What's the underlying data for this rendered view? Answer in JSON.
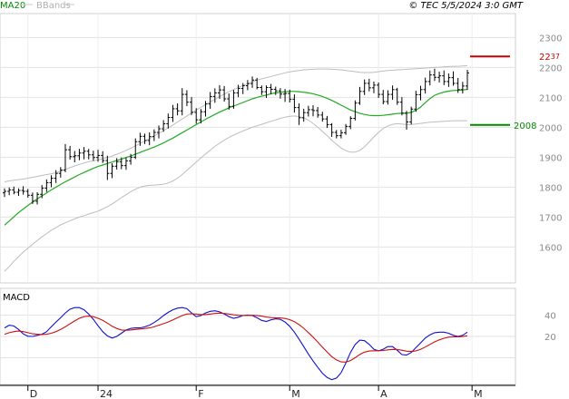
{
  "header": {
    "ma_label": "MA20",
    "bb_label": "BBands",
    "copyright": "© TEC 5/5/2024 3:0 GMT"
  },
  "chart_data": [
    {
      "type": "candlestick",
      "name": "price",
      "ylim": [
        1480,
        2380
      ],
      "yticks": [
        1600,
        1700,
        1800,
        1900,
        2000,
        2100,
        2200,
        2300
      ],
      "grid": true,
      "x_labels": [
        {
          "label": "D",
          "index": 5
        },
        {
          "label": "24",
          "index": 20
        },
        {
          "label": "F",
          "index": 41
        },
        {
          "label": "M",
          "index": 61
        },
        {
          "label": "A",
          "index": 80
        },
        {
          "label": "M",
          "index": 100
        }
      ],
      "levels": [
        {
          "value": 2237,
          "text_main": "22",
          "text_small": "37",
          "color": "#cc0000"
        },
        {
          "value": 2008,
          "text_main": "2008",
          "text_small": "",
          "color": "#008800"
        }
      ],
      "ohlc": [
        [
          1781,
          1796,
          1767,
          1786
        ],
        [
          1786,
          1799,
          1773,
          1791
        ],
        [
          1791,
          1802,
          1776,
          1783
        ],
        [
          1783,
          1796,
          1771,
          1789
        ],
        [
          1789,
          1803,
          1775,
          1786
        ],
        [
          1786,
          1794,
          1765,
          1773
        ],
        [
          1773,
          1782,
          1744,
          1753
        ],
        [
          1753,
          1783,
          1742,
          1776
        ],
        [
          1776,
          1807,
          1763,
          1797
        ],
        [
          1797,
          1826,
          1784,
          1815
        ],
        [
          1815,
          1840,
          1800,
          1830
        ],
        [
          1830,
          1857,
          1814,
          1846
        ],
        [
          1846,
          1867,
          1832,
          1857
        ],
        [
          1857,
          1944,
          1850,
          1925
        ],
        [
          1925,
          1938,
          1892,
          1902
        ],
        [
          1902,
          1921,
          1883,
          1905
        ],
        [
          1905,
          1928,
          1890,
          1914
        ],
        [
          1914,
          1934,
          1893,
          1920
        ],
        [
          1920,
          1928,
          1893,
          1908
        ],
        [
          1908,
          1922,
          1888,
          1899
        ],
        [
          1899,
          1925,
          1885,
          1906
        ],
        [
          1906,
          1920,
          1881,
          1889
        ],
        [
          1889,
          1905,
          1824,
          1846
        ],
        [
          1846,
          1880,
          1830,
          1870
        ],
        [
          1870,
          1897,
          1859,
          1885
        ],
        [
          1885,
          1899,
          1860,
          1872
        ],
        [
          1872,
          1899,
          1858,
          1888
        ],
        [
          1888,
          1911,
          1875,
          1900
        ],
        [
          1900,
          1963,
          1894,
          1952
        ],
        [
          1952,
          1982,
          1938,
          1970
        ],
        [
          1970,
          1979,
          1944,
          1956
        ],
        [
          1956,
          1983,
          1940,
          1969
        ],
        [
          1969,
          1993,
          1954,
          1983
        ],
        [
          1983,
          2006,
          1963,
          1995
        ],
        [
          1995,
          2024,
          1985,
          2012
        ],
        [
          2012,
          2046,
          1996,
          2033
        ],
        [
          2033,
          2075,
          2018,
          2062
        ],
        [
          2062,
          2080,
          2040,
          2055
        ],
        [
          2055,
          2131,
          2040,
          2110
        ],
        [
          2110,
          2124,
          2071,
          2084
        ],
        [
          2084,
          2101,
          2041,
          2050
        ],
        [
          2050,
          2064,
          2012,
          2025
        ],
        [
          2025,
          2061,
          2013,
          2052
        ],
        [
          2052,
          2088,
          2036,
          2078
        ],
        [
          2078,
          2118,
          2062,
          2103
        ],
        [
          2103,
          2130,
          2082,
          2115
        ],
        [
          2115,
          2141,
          2095,
          2125
        ],
        [
          2125,
          2138,
          2086,
          2095
        ],
        [
          2095,
          2113,
          2059,
          2070
        ],
        [
          2070,
          2125,
          2062,
          2115
        ],
        [
          2115,
          2142,
          2101,
          2130
        ],
        [
          2130,
          2148,
          2111,
          2139
        ],
        [
          2139,
          2158,
          2124,
          2146
        ],
        [
          2146,
          2170,
          2132,
          2158
        ],
        [
          2158,
          2165,
          2127,
          2133
        ],
        [
          2133,
          2140,
          2108,
          2119
        ],
        [
          2119,
          2140,
          2098,
          2133
        ],
        [
          2133,
          2145,
          2110,
          2127
        ],
        [
          2127,
          2136,
          2108,
          2122
        ],
        [
          2122,
          2131,
          2096,
          2111
        ],
        [
          2111,
          2128,
          2085,
          2113
        ],
        [
          2113,
          2126,
          2083,
          2094
        ],
        [
          2094,
          2110,
          2049,
          2066
        ],
        [
          2066,
          2080,
          2008,
          2032
        ],
        [
          2032,
          2062,
          2019,
          2049
        ],
        [
          2049,
          2072,
          2036,
          2059
        ],
        [
          2059,
          2074,
          2037,
          2056
        ],
        [
          2056,
          2068,
          2032,
          2041
        ],
        [
          2041,
          2052,
          2019,
          2028
        ],
        [
          2028,
          2038,
          1998,
          2009
        ],
        [
          2009,
          2014,
          1968,
          1983
        ],
        [
          1983,
          1991,
          1963,
          1972
        ],
        [
          1972,
          1992,
          1963,
          1982
        ],
        [
          1982,
          2011,
          1975,
          2003
        ],
        [
          2003,
          2037,
          1994,
          2030
        ],
        [
          2030,
          2090,
          2023,
          2081
        ],
        [
          2081,
          2135,
          2075,
          2120
        ],
        [
          2120,
          2160,
          2108,
          2147
        ],
        [
          2147,
          2162,
          2120,
          2132
        ],
        [
          2132,
          2153,
          2114,
          2141
        ],
        [
          2141,
          2150,
          2098,
          2110
        ],
        [
          2110,
          2125,
          2077,
          2086
        ],
        [
          2086,
          2124,
          2076,
          2110
        ],
        [
          2110,
          2140,
          2092,
          2126
        ],
        [
          2126,
          2132,
          2075,
          2084
        ],
        [
          2084,
          2101,
          2040,
          2047
        ],
        [
          2047,
          2055,
          1992,
          2018
        ],
        [
          2018,
          2069,
          2010,
          2061
        ],
        [
          2061,
          2122,
          2052,
          2109
        ],
        [
          2109,
          2139,
          2090,
          2126
        ],
        [
          2126,
          2166,
          2113,
          2153
        ],
        [
          2153,
          2190,
          2140,
          2175
        ],
        [
          2175,
          2196,
          2155,
          2167
        ],
        [
          2167,
          2186,
          2150,
          2172
        ],
        [
          2172,
          2190,
          2141,
          2153
        ],
        [
          2153,
          2180,
          2135,
          2166
        ],
        [
          2166,
          2187,
          2139,
          2147
        ],
        [
          2147,
          2165,
          2115,
          2126
        ],
        [
          2126,
          2152,
          2113,
          2138
        ],
        [
          2138,
          2192,
          2125,
          2182
        ]
      ],
      "ma20": [
        1673,
        1687,
        1701,
        1715,
        1727,
        1739,
        1750,
        1761,
        1771,
        1781,
        1791,
        1800,
        1809,
        1818,
        1826,
        1834,
        1842,
        1849,
        1856,
        1863,
        1869,
        1874,
        1879,
        1884,
        1889,
        1894,
        1899,
        1904,
        1910,
        1916,
        1922,
        1928,
        1934,
        1941,
        1948,
        1956,
        1964,
        1973,
        1982,
        1991,
        2000,
        2009,
        2018,
        2027,
        2035,
        2043,
        2051,
        2058,
        2065,
        2071,
        2077,
        2083,
        2089,
        2095,
        2100,
        2104,
        2108,
        2112,
        2115,
        2117,
        2119,
        2120,
        2120,
        2119,
        2117,
        2115,
        2112,
        2108,
        2103,
        2097,
        2090,
        2082,
        2074,
        2066,
        2058,
        2052,
        2047,
        2043,
        2040,
        2039,
        2039,
        2040,
        2042,
        2044,
        2046,
        2047,
        2047,
        2050,
        2057,
        2068,
        2082,
        2096,
        2107,
        2113,
        2118,
        2121,
        2123,
        2124,
        2125,
        2127
      ],
      "bb_upper": [
        1818,
        1821,
        1823,
        1825,
        1827,
        1830,
        1833,
        1836,
        1839,
        1842,
        1845,
        1848,
        1853,
        1859,
        1865,
        1871,
        1876,
        1881,
        1885,
        1888,
        1891,
        1895,
        1899,
        1904,
        1910,
        1916,
        1923,
        1930,
        1938,
        1946,
        1954,
        1962,
        1971,
        1980,
        1989,
        1998,
        2008,
        2018,
        2028,
        2038,
        2048,
        2058,
        2067,
        2076,
        2085,
        2094,
        2103,
        2111,
        2119,
        2126,
        2133,
        2140,
        2146,
        2152,
        2158,
        2162,
        2166,
        2170,
        2174,
        2178,
        2182,
        2185,
        2188,
        2190,
        2192,
        2193,
        2194,
        2195,
        2195,
        2195,
        2194,
        2193,
        2192,
        2190,
        2188,
        2186,
        2184,
        2183,
        2183,
        2184,
        2186,
        2188,
        2190,
        2191,
        2192,
        2193,
        2194,
        2195,
        2196,
        2197,
        2198,
        2199,
        2200,
        2201,
        2202,
        2203,
        2204,
        2204,
        2205,
        2206
      ],
      "bb_lower": [
        1519,
        1535,
        1552,
        1568,
        1583,
        1596,
        1609,
        1622,
        1634,
        1645,
        1656,
        1665,
        1674,
        1681,
        1688,
        1694,
        1700,
        1705,
        1710,
        1715,
        1720,
        1727,
        1735,
        1744,
        1754,
        1765,
        1775,
        1785,
        1793,
        1800,
        1804,
        1806,
        1807,
        1808,
        1810,
        1814,
        1821,
        1830,
        1842,
        1856,
        1870,
        1884,
        1898,
        1911,
        1924,
        1936,
        1947,
        1957,
        1966,
        1974,
        1981,
        1988,
        1994,
        2000,
        2005,
        2010,
        2015,
        2020,
        2025,
        2030,
        2034,
        2037,
        2038,
        2036,
        2032,
        2024,
        2013,
        2000,
        1986,
        1972,
        1957,
        1943,
        1931,
        1922,
        1917,
        1917,
        1923,
        1935,
        1951,
        1968,
        1983,
        1996,
        2005,
        2010,
        2012,
        2011,
        2009,
        2009,
        2011,
        2013,
        2015,
        2017,
        2018,
        2019,
        2020,
        2021,
        2022,
        2022,
        2022,
        2022
      ]
    },
    {
      "type": "line",
      "name": "MACD",
      "title": "MACD",
      "ylim": [
        -25,
        65
      ],
      "yticks": [
        20,
        40
      ],
      "grid": true,
      "series": [
        {
          "color": "#1010cc",
          "values": [
            28.0,
            30.5,
            29.8,
            26.5,
            22.4,
            20.2,
            20.0,
            21.0,
            22.0,
            24.5,
            29.0,
            33.5,
            37.5,
            42.0,
            45.5,
            47.0,
            47.0,
            45.0,
            41.0,
            36.0,
            30.0,
            24.5,
            20.5,
            18.5,
            20.0,
            23.0,
            26.0,
            27.5,
            28.0,
            28.0,
            29.0,
            30.5,
            33.0,
            36.0,
            39.5,
            42.5,
            45.0,
            46.5,
            47.0,
            46.0,
            42.0,
            38.5,
            39.5,
            42.0,
            43.5,
            44.0,
            43.0,
            41.0,
            38.5,
            37.0,
            38.0,
            39.5,
            40.0,
            39.5,
            37.5,
            35.0,
            34.0,
            35.5,
            36.5,
            36.0,
            33.5,
            29.5,
            24.0,
            17.5,
            10.5,
            3.5,
            -3.0,
            -9.0,
            -14.5,
            -18.5,
            -20.5,
            -19.0,
            -14.0,
            -5.0,
            5.0,
            12.5,
            16.5,
            16.0,
            12.5,
            8.0,
            6.5,
            8.0,
            10.5,
            10.5,
            7.0,
            3.0,
            2.5,
            5.0,
            9.5,
            14.0,
            18.5,
            21.5,
            23.5,
            24.0,
            24.0,
            23.0,
            21.0,
            20.0,
            21.0,
            24.0
          ]
        },
        {
          "color": "#cc1010",
          "values": [
            22.0,
            23.5,
            24.5,
            25.0,
            24.5,
            23.5,
            22.5,
            22.0,
            21.8,
            22.0,
            23.0,
            24.5,
            26.5,
            29.0,
            31.8,
            34.5,
            37.0,
            38.5,
            39.0,
            38.5,
            37.0,
            35.0,
            32.5,
            29.5,
            27.5,
            26.0,
            25.8,
            26.0,
            26.5,
            27.0,
            27.5,
            28.0,
            29.0,
            30.5,
            32.0,
            33.5,
            35.5,
            37.5,
            39.5,
            41.0,
            41.2,
            41.0,
            40.5,
            40.5,
            41.0,
            41.5,
            41.8,
            41.5,
            41.0,
            40.2,
            39.8,
            39.6,
            39.7,
            39.8,
            39.6,
            39.0,
            38.2,
            37.7,
            37.5,
            37.3,
            36.8,
            35.7,
            33.8,
            31.0,
            27.6,
            23.6,
            19.3,
            14.7,
            9.9,
            5.3,
            1.1,
            -2.0,
            -3.9,
            -4.0,
            -2.6,
            0.1,
            3.1,
            5.3,
            6.3,
            6.6,
            6.6,
            6.8,
            7.4,
            7.9,
            7.8,
            7.1,
            6.2,
            5.9,
            6.5,
            7.9,
            10.1,
            12.5,
            14.9,
            16.8,
            18.3,
            19.3,
            19.6,
            19.7,
            19.9,
            20.6
          ]
        }
      ]
    }
  ]
}
